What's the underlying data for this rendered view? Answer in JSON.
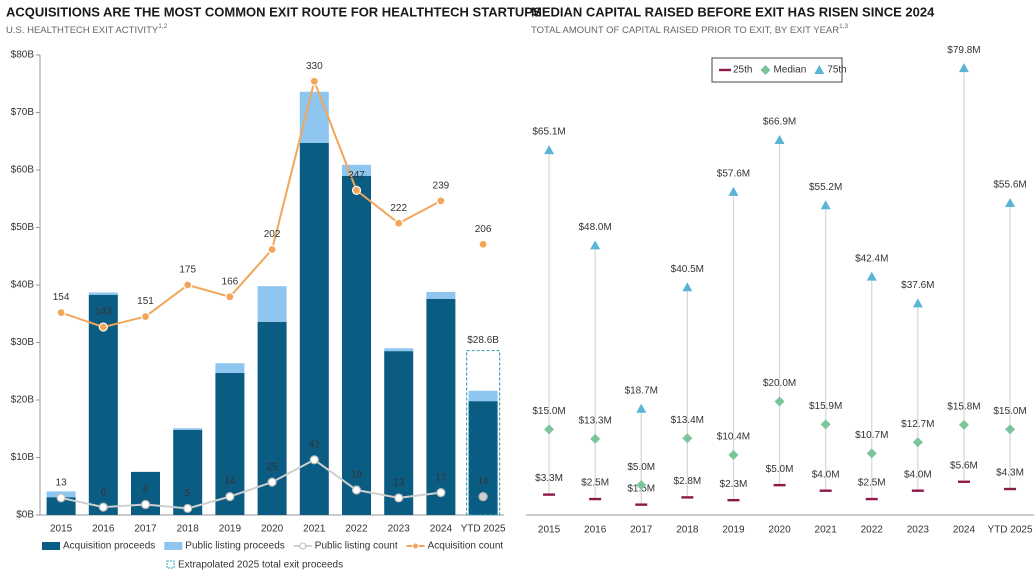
{
  "chart_data": [
    {
      "type": "bar",
      "stacked": true,
      "title": "ACQUISITIONS ARE THE MOST COMMON EXIT ROUTE FOR HEALTHTECH STARTUPS",
      "subtitle": "U.S. HEALTHTECH EXIT ACTIVITY",
      "subtitle_note": "1,2",
      "categories": [
        "2015",
        "2016",
        "2017",
        "2018",
        "2019",
        "2020",
        "2021",
        "2022",
        "2023",
        "2024",
        "YTD 2025"
      ],
      "ylim": [
        0,
        80
      ],
      "yticks": [
        {
          "value": 0,
          "label": "$0B"
        },
        {
          "value": 10,
          "label": "$10B"
        },
        {
          "value": 20,
          "label": "$20B"
        },
        {
          "value": 30,
          "label": "$30B"
        },
        {
          "value": 40,
          "label": "$40B"
        },
        {
          "value": 50,
          "label": "$50B"
        },
        {
          "value": 60,
          "label": "$60B"
        },
        {
          "value": 70,
          "label": "$70B"
        },
        {
          "value": 80,
          "label": "$80B"
        }
      ],
      "y2lim": [
        0,
        350
      ],
      "connect_last": false,
      "series": [
        {
          "name": "Acquisition proceeds",
          "type": "bar",
          "color": "#0b5c82",
          "values": [
            3.1,
            38.3,
            7.5,
            14.8,
            24.7,
            33.6,
            64.7,
            59.0,
            28.5,
            37.6,
            19.8
          ]
        },
        {
          "name": "Public listing proceeds",
          "type": "bar",
          "color": "#8ec6ef",
          "values": [
            1.0,
            0.4,
            0,
            0.3,
            1.7,
            6.2,
            8.9,
            1.9,
            0.5,
            1.2,
            1.8
          ]
        },
        {
          "name": "Public listing count",
          "type": "line",
          "axis": "y2",
          "color": "#cfcfcf",
          "values": [
            13,
            6,
            8,
            5,
            14,
            25,
            42,
            19,
            13,
            17,
            14
          ]
        },
        {
          "name": "Acquisition count",
          "type": "line",
          "axis": "y2",
          "color": "#f2a65a",
          "values": [
            154,
            143,
            151,
            175,
            166,
            202,
            330,
            247,
            222,
            239,
            206
          ]
        }
      ],
      "extrapolated": {
        "name": "Extrapolated 2025 total exit proceeds",
        "value": 28.6,
        "label": "$28.6B",
        "color": "#3aa6b9"
      }
    },
    {
      "type": "dot",
      "title": "MEDIAN CAPITAL RAISED BEFORE EXIT HAS RISEN SINCE 2024",
      "subtitle": "TOTAL AMOUNT OF CAPITAL RAISED PRIOR TO EXIT, BY EXIT YEAR",
      "subtitle_note": "1,3",
      "categories": [
        "2015",
        "2016",
        "2017",
        "2018",
        "2019",
        "2020",
        "2021",
        "2022",
        "2023",
        "2024",
        "YTD 2025"
      ],
      "ylim": [
        0,
        80
      ],
      "series": [
        {
          "name": "25th",
          "color": "#8b1a4a",
          "values": [
            3.3,
            2.5,
            1.5,
            2.8,
            2.3,
            5.0,
            4.0,
            2.5,
            4.0,
            5.6,
            4.3
          ],
          "value_labels": [
            "$3.3M",
            "$2.5M",
            "$1.5M",
            "$2.8M",
            "$2.3M",
            "$5.0M",
            "$4.0M",
            "$2.5M",
            "$4.0M",
            "$5.6M",
            "$4.3M"
          ]
        },
        {
          "name": "Median",
          "color": "#7cc49a",
          "values": [
            15.0,
            13.3,
            5.0,
            13.4,
            10.4,
            20.0,
            15.9,
            10.7,
            12.7,
            15.8,
            15.0
          ],
          "value_labels": [
            "$15.0M",
            "$13.3M",
            "$5.0M",
            "$13.4M",
            "$10.4M",
            "$20.0M",
            "$15.9M",
            "$10.7M",
            "$12.7M",
            "$15.8M",
            "$15.0M"
          ]
        },
        {
          "name": "75th",
          "color": "#5ab4d6",
          "values": [
            65.1,
            48.0,
            18.7,
            40.5,
            57.6,
            66.9,
            55.2,
            42.4,
            37.6,
            79.8,
            55.6
          ],
          "value_labels": [
            "$65.1M",
            "$48.0M",
            "$18.7M",
            "$40.5M",
            "$57.6M",
            "$66.9M",
            "$55.2M",
            "$42.4M",
            "$37.6M",
            "$79.8M",
            "$55.6M"
          ]
        }
      ]
    }
  ]
}
